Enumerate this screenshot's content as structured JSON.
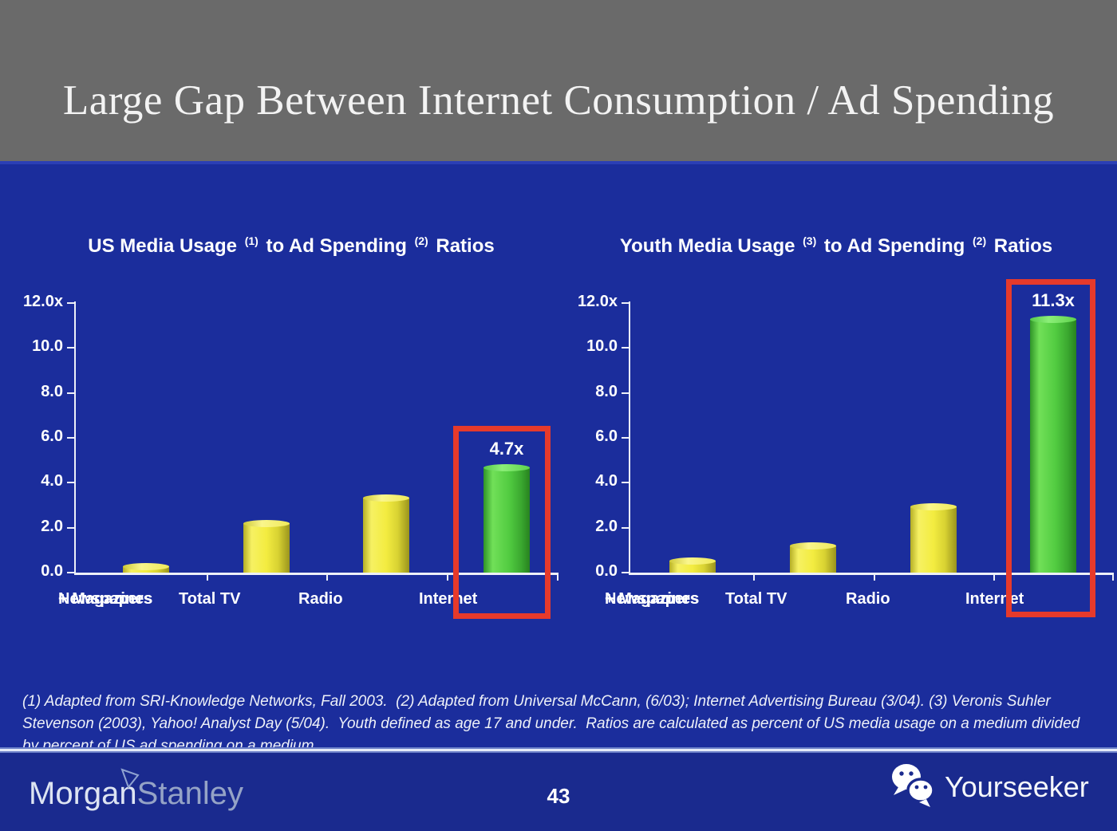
{
  "slide": {
    "title": "Large Gap Between Internet Consumption / Ad Spending",
    "page_number": "43",
    "footnote_lines": [
      "(1) Adapted from SRI-Knowledge Networks, Fall 2003.  (2) Adapted from Universal McCann, (6/03); Internet Advertising Bureau (3/04). (3) Veronis Suhler",
      "Stevenson (2003), Yahoo! Analyst Day (5/04).  Youth defined as age 17 and under.  Ratios are calculated as percent of US media usage on a medium divided",
      "by percent of US ad spending on a medium."
    ]
  },
  "footer": {
    "brand": {
      "part1": "Morgan",
      "part2": "Stanley",
      "icon": "morgan-stanley-wedge-icon"
    },
    "watermark": {
      "label": "Yourseeker",
      "icon": "wechat-icon"
    }
  },
  "colors": {
    "header_gray": "#6A6A6A",
    "slide_blue": "#1B2D9C",
    "footer_blue": "#1A2A8E",
    "bar_yellow": "#F3EC40",
    "bar_green": "#52CC41",
    "highlight_red": "#E63A2B",
    "axis_white": "#EDF0F8",
    "text_white": "#FFFFFF"
  },
  "chart_data": [
    {
      "type": "bar",
      "title_plain": "US Media Usage (1) to Ad Spending (2) Ratios",
      "title_parts": [
        {
          "text": "US Media Usage "
        },
        {
          "text": "(1)",
          "sup": true
        },
        {
          "text": " to Ad Spending "
        },
        {
          "text": "(2)",
          "sup": true
        },
        {
          "text": " Ratios"
        }
      ],
      "categories": [
        "Newspapers\n+ Magazines",
        "Total TV",
        "Radio",
        "Internet"
      ],
      "values": [
        0.3,
        2.2,
        3.35,
        4.7
      ],
      "bar_colors": [
        "yellow",
        "yellow",
        "yellow",
        "green"
      ],
      "highlight": {
        "index": 3,
        "label": "4.7x",
        "boxed": true
      },
      "y_ticks": [
        {
          "value": 12,
          "label": "12.0x"
        },
        {
          "value": 10,
          "label": "10.0"
        },
        {
          "value": 8,
          "label": "8.0"
        },
        {
          "value": 6,
          "label": "6.0"
        },
        {
          "value": 4,
          "label": "4.0"
        },
        {
          "value": 2,
          "label": "2.0"
        },
        {
          "value": 0,
          "label": "0.0"
        }
      ],
      "ylim": [
        0,
        12
      ],
      "xlabel": "",
      "ylabel": "",
      "grid": false,
      "legend": "none"
    },
    {
      "type": "bar",
      "title_plain": "Youth Media Usage (3) to Ad Spending (2) Ratios",
      "title_parts": [
        {
          "text": "Youth Media Usage "
        },
        {
          "text": "(3)",
          "sup": true
        },
        {
          "text": " to Ad Spending "
        },
        {
          "text": "(2)",
          "sup": true
        },
        {
          "text": " Ratios"
        }
      ],
      "categories": [
        "Newspapers\n+ Magazines",
        "Total TV",
        "Radio",
        "Internet"
      ],
      "values": [
        0.55,
        1.2,
        2.95,
        11.3
      ],
      "bar_colors": [
        "yellow",
        "yellow",
        "yellow",
        "green"
      ],
      "highlight": {
        "index": 3,
        "label": "11.3x",
        "boxed": true
      },
      "y_ticks": [
        {
          "value": 12,
          "label": "12.0x"
        },
        {
          "value": 10,
          "label": "10.0"
        },
        {
          "value": 8,
          "label": "8.0"
        },
        {
          "value": 6,
          "label": "6.0"
        },
        {
          "value": 4,
          "label": "4.0"
        },
        {
          "value": 2,
          "label": "2.0"
        },
        {
          "value": 0,
          "label": "0.0"
        }
      ],
      "ylim": [
        0,
        12
      ],
      "xlabel": "",
      "ylabel": "",
      "grid": false,
      "legend": "none"
    }
  ]
}
